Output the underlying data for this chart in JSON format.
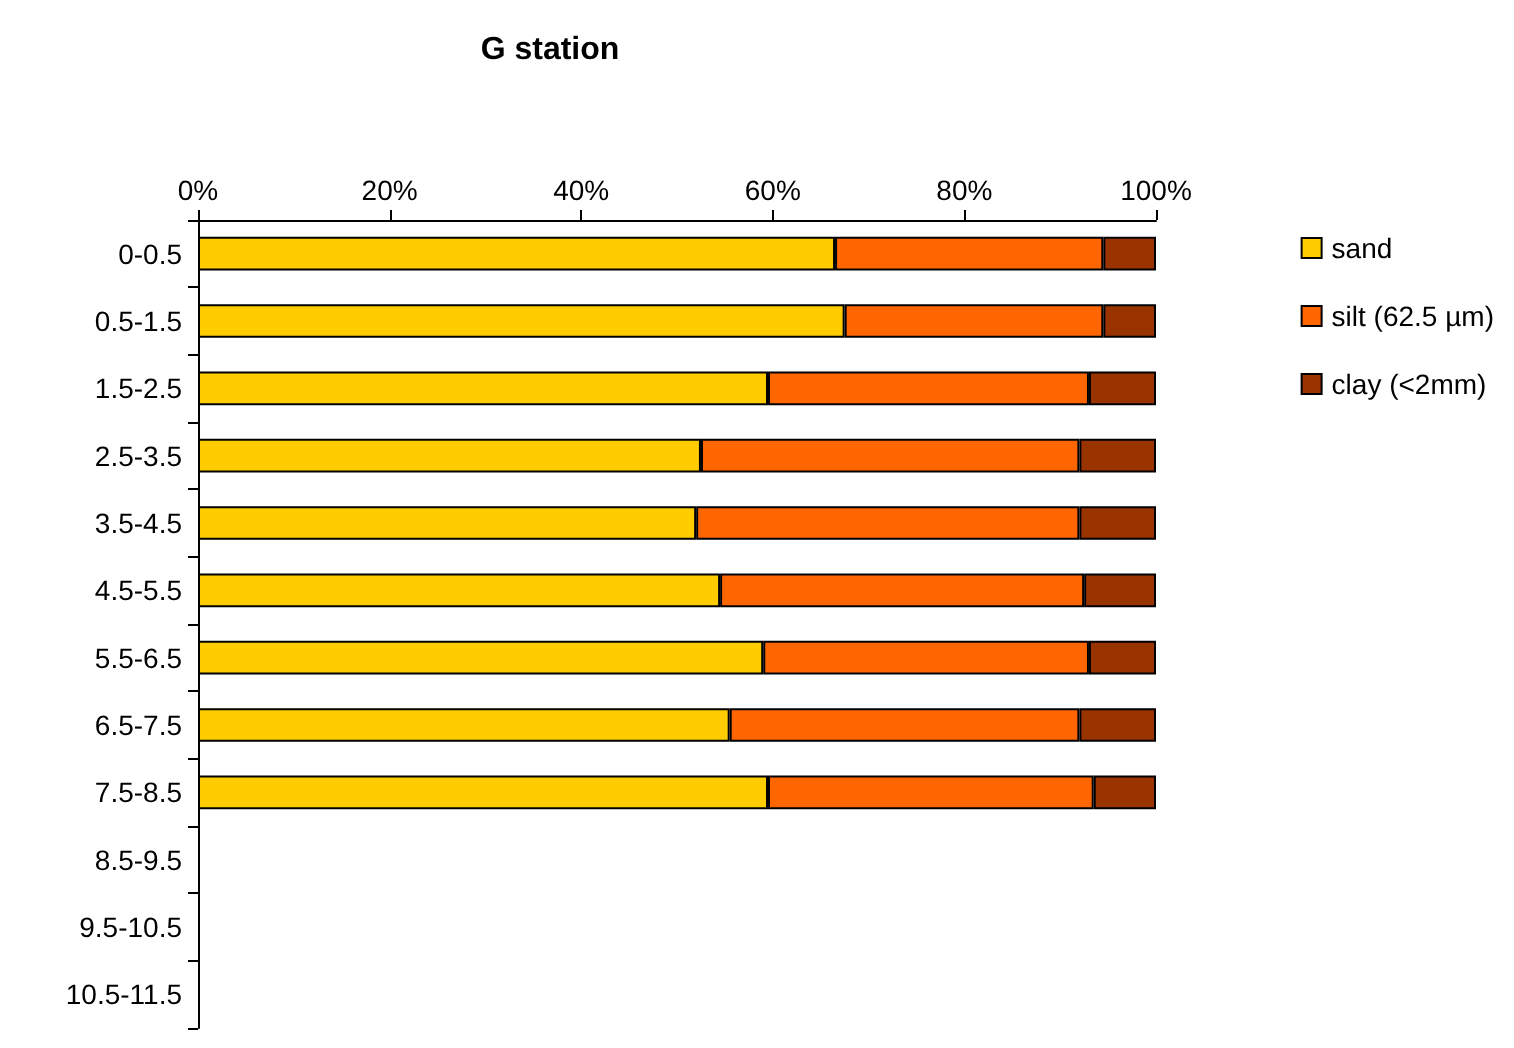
{
  "chart_data": {
    "type": "bar",
    "orientation": "horizontal",
    "stacked": true,
    "title": "G station",
    "categories": [
      "0-0.5",
      "0.5-1.5",
      "1.5-2.5",
      "2.5-3.5",
      "3.5-4.5",
      "4.5-5.5",
      "5.5-6.5",
      "6.5-7.5",
      "7.5-8.5",
      "8.5-9.5",
      "9.5-10.5",
      "10.5-11.5"
    ],
    "series": [
      {
        "name": "sand",
        "color": "#ffcc00",
        "values": [
          66.5,
          67.5,
          59.5,
          52.5,
          52,
          54.5,
          59,
          55.5,
          59.5,
          null,
          null,
          null
        ]
      },
      {
        "name": "silt (62.5 µm)",
        "color": "#ff6600",
        "values": [
          28,
          27,
          33.5,
          39.5,
          40,
          38,
          34,
          36.5,
          34,
          null,
          null,
          null
        ]
      },
      {
        "name": "clay (<2mm)",
        "color": "#993300",
        "values": [
          5.5,
          5.5,
          7,
          8,
          8,
          7.5,
          7,
          8,
          6.5,
          null,
          null,
          null
        ]
      }
    ],
    "xlim": [
      0,
      100
    ],
    "xticks": [
      {
        "value": 0,
        "label": "0%"
      },
      {
        "value": 20,
        "label": "20%"
      },
      {
        "value": 40,
        "label": "40%"
      },
      {
        "value": 60,
        "label": "60%"
      },
      {
        "value": 80,
        "label": "80%"
      },
      {
        "value": 100,
        "label": "100%"
      }
    ],
    "grid": false,
    "legend": "right"
  }
}
